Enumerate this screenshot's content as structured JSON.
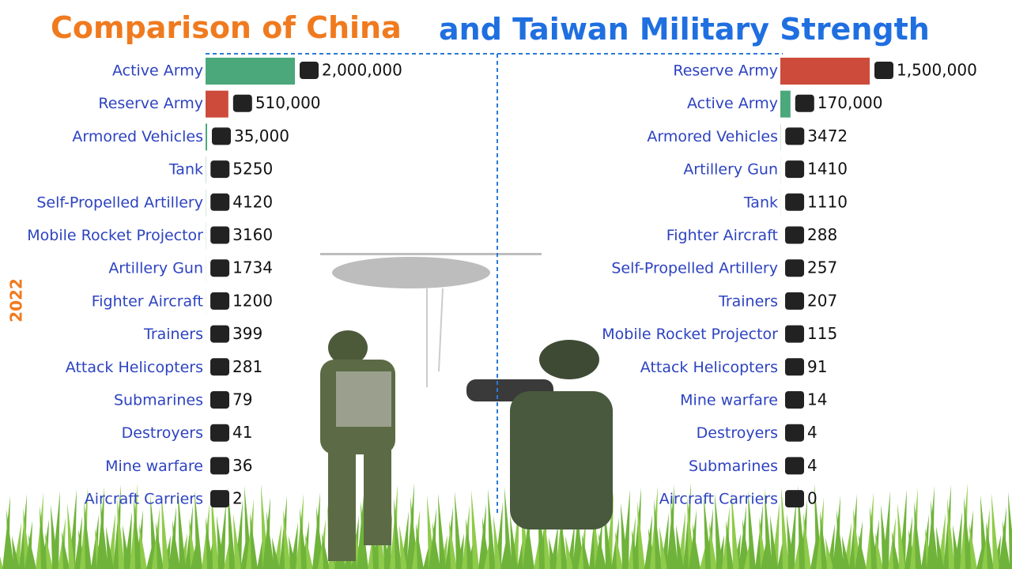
{
  "year": "2022",
  "chart_data": [
    {
      "type": "bar",
      "orientation": "horizontal",
      "title": "Comparison of China",
      "title_color": "#f07a1e",
      "categories": [
        "Active Army",
        "Reserve Army",
        "Armored Vehicles",
        "Tank",
        "Self-Propelled Artillery",
        "Mobile Rocket Projector",
        "Artillery Gun",
        "Fighter Aircraft",
        "Trainers",
        "Attack Helicopters",
        "Submarines",
        "Destroyers",
        "Mine warfare",
        "Aircraft Carriers"
      ],
      "values": [
        2000000,
        510000,
        35000,
        5250,
        4120,
        3160,
        1734,
        1200,
        399,
        281,
        79,
        41,
        36,
        2
      ],
      "value_labels": [
        "2,000,000",
        "510,000",
        "35,000",
        "5250",
        "4120",
        "3160",
        "1734",
        "1200",
        "399",
        "281",
        "79",
        "41",
        "36",
        "2"
      ],
      "colors": [
        "#4aa87a",
        "#cc4b3a",
        "#4aa87a",
        "#4aa87a",
        "#4aa87a",
        "#4aa87a",
        "#4aa87a",
        "#4aa87a",
        "#4aa87a",
        "#4aa87a",
        "#4aa87a",
        "#4aa87a",
        "#4aa87a",
        "#4aa87a"
      ],
      "xlim": [
        0,
        2000000
      ]
    },
    {
      "type": "bar",
      "orientation": "horizontal",
      "title": "and Taiwan Military Strength",
      "title_color": "#1f6fe0",
      "categories": [
        "Reserve Army",
        "Active Army",
        "Armored Vehicles",
        "Artillery Gun",
        "Tank",
        "Fighter Aircraft",
        "Self-Propelled Artillery",
        "Trainers",
        "Mobile Rocket Projector",
        "Attack Helicopters",
        "Mine warfare",
        "Destroyers",
        "Submarines",
        "Aircraft Carriers"
      ],
      "values": [
        1500000,
        170000,
        3472,
        1410,
        1110,
        288,
        257,
        207,
        115,
        91,
        14,
        4,
        4,
        0
      ],
      "value_labels": [
        "1,500,000",
        "170,000",
        "3472",
        "1410",
        "1110",
        "288",
        "257",
        "207",
        "115",
        "91",
        "14",
        "4",
        "4",
        "0"
      ],
      "colors": [
        "#cc4b3a",
        "#4aa87a",
        "#4aa87a",
        "#4aa87a",
        "#4aa87a",
        "#4aa87a",
        "#4aa87a",
        "#4aa87a",
        "#4aa87a",
        "#4aa87a",
        "#4aa87a",
        "#4aa87a",
        "#4aa87a",
        "#4aa87a"
      ],
      "xlim": [
        0,
        1500000
      ]
    }
  ]
}
